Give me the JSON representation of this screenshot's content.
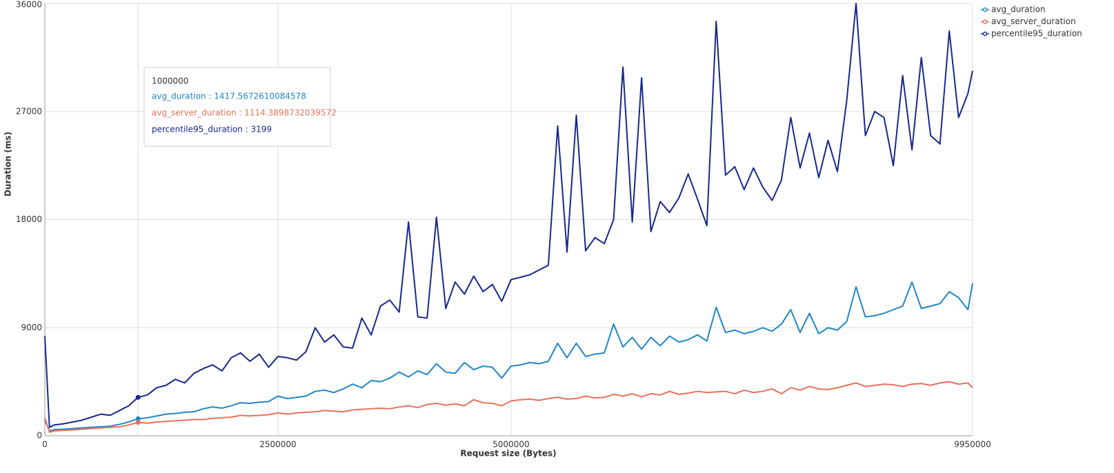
{
  "chart_data": {
    "type": "line",
    "y_label": "Duration (ms)",
    "x_label": "Request size (Bytes)",
    "x": [
      0,
      50000,
      100000,
      200000,
      300000,
      400000,
      500000,
      600000,
      700000,
      800000,
      900000,
      1000000,
      1100000,
      1200000,
      1300000,
      1400000,
      1500000,
      1600000,
      1700000,
      1800000,
      1900000,
      2000000,
      2100000,
      2200000,
      2300000,
      2400000,
      2500000,
      2600000,
      2700000,
      2800000,
      2900000,
      3000000,
      3100000,
      3200000,
      3300000,
      3400000,
      3500000,
      3600000,
      3700000,
      3800000,
      3900000,
      4000000,
      4100000,
      4200000,
      4300000,
      4400000,
      4500000,
      4600000,
      4700000,
      4800000,
      4900000,
      5000000,
      5100000,
      5200000,
      5300000,
      5400000,
      5500000,
      5600000,
      5700000,
      5800000,
      5900000,
      6000000,
      6100000,
      6200000,
      6300000,
      6400000,
      6500000,
      6600000,
      6700000,
      6800000,
      6900000,
      7000000,
      7100000,
      7200000,
      7300000,
      7400000,
      7500000,
      7600000,
      7700000,
      7800000,
      7900000,
      8000000,
      8100000,
      8200000,
      8300000,
      8400000,
      8500000,
      8600000,
      8700000,
      8800000,
      8900000,
      9000000,
      9100000,
      9200000,
      9300000,
      9400000,
      9500000,
      9600000,
      9700000,
      9800000,
      9900000,
      9950000
    ],
    "series": [
      {
        "name": "avg_duration",
        "color": "#1f86c8",
        "values": [
          1300,
          400,
          500,
          550,
          600,
          650,
          700,
          750,
          800,
          950,
          1150,
          1417.5672610084578,
          1500,
          1650,
          1800,
          1850,
          1950,
          2000,
          2250,
          2400,
          2300,
          2500,
          2750,
          2700,
          2800,
          2850,
          3300,
          3100,
          3200,
          3300,
          3700,
          3800,
          3600,
          3900,
          4300,
          4000,
          4600,
          4500,
          4800,
          5300,
          4900,
          5400,
          5100,
          6000,
          5300,
          5200,
          6100,
          5500,
          5800,
          5700,
          4800,
          5800,
          5900,
          6100,
          6000,
          6200,
          7700,
          6500,
          7700,
          6600,
          6800,
          6900,
          9300,
          7400,
          8200,
          7200,
          8200,
          7500,
          8300,
          7800,
          8000,
          8400,
          7900,
          10700,
          8600,
          8800,
          8500,
          8700,
          9000,
          8700,
          9300,
          10500,
          8600,
          10200,
          8500,
          9000,
          8800,
          9500,
          12400,
          9900,
          10000,
          10200,
          10500,
          10800,
          12800,
          10600,
          10800,
          11000,
          12000,
          11500,
          10500,
          12700
        ]
      },
      {
        "name": "avg_server_duration",
        "color": "#e8705a",
        "values": [
          1500,
          300,
          400,
          450,
          480,
          550,
          600,
          650,
          700,
          750,
          900,
          1114.3898732039572,
          1050,
          1150,
          1200,
          1250,
          1300,
          1350,
          1350,
          1450,
          1500,
          1550,
          1700,
          1650,
          1700,
          1750,
          1900,
          1800,
          1900,
          1950,
          2000,
          2100,
          2050,
          2000,
          2150,
          2200,
          2250,
          2300,
          2250,
          2400,
          2500,
          2350,
          2600,
          2700,
          2550,
          2650,
          2500,
          3000,
          2750,
          2700,
          2500,
          2900,
          3000,
          3050,
          2950,
          3100,
          3200,
          3050,
          3100,
          3300,
          3150,
          3200,
          3450,
          3300,
          3500,
          3250,
          3500,
          3400,
          3700,
          3450,
          3550,
          3700,
          3600,
          3650,
          3700,
          3500,
          3800,
          3600,
          3700,
          3900,
          3500,
          4000,
          3800,
          4100,
          3900,
          3850,
          4000,
          4200,
          4400,
          4100,
          4200,
          4300,
          4250,
          4100,
          4300,
          4350,
          4200,
          4400,
          4500,
          4300,
          4400,
          4000
        ]
      },
      {
        "name": "percentile95_duration",
        "color": "#15278a",
        "values": [
          8300,
          700,
          900,
          1000,
          1150,
          1300,
          1550,
          1800,
          1700,
          2100,
          2500,
          3199,
          3400,
          4000,
          4200,
          4700,
          4400,
          5200,
          5600,
          5900,
          5400,
          6500,
          6900,
          6200,
          6800,
          5700,
          6600,
          6500,
          6300,
          7000,
          9000,
          7800,
          8400,
          7400,
          7300,
          9800,
          8400,
          10800,
          11300,
          10300,
          17800,
          9900,
          9800,
          18200,
          10600,
          12800,
          11800,
          13300,
          12000,
          12600,
          11200,
          13000,
          13200,
          13400,
          13800,
          14200,
          25800,
          15300,
          26700,
          15400,
          16500,
          16000,
          18000,
          30700,
          17800,
          29800,
          17000,
          19500,
          18600,
          19800,
          21800,
          19700,
          17500,
          34500,
          21700,
          22400,
          20500,
          22300,
          20700,
          19600,
          21300,
          26500,
          22300,
          25200,
          21500,
          24600,
          22000,
          27900,
          36000,
          25000,
          27000,
          26500,
          22500,
          30000,
          23800,
          31500,
          25000,
          24300,
          33700,
          26500,
          28500,
          30400
        ]
      }
    ],
    "xlim": [
      0,
      9950000
    ],
    "xticks": [
      0,
      2500000,
      5000000,
      9950000
    ],
    "ylim": [
      0,
      36000
    ],
    "yticks": [
      0,
      9000,
      18000,
      27000,
      36000
    ],
    "grid": true,
    "legend": "top-right",
    "tooltip": {
      "index": 11,
      "lines": [
        "avg_duration : 1417.5672610084578",
        "avg_server_duration : 1114.3898732039572",
        "percentile95_duration : 3199"
      ]
    }
  }
}
